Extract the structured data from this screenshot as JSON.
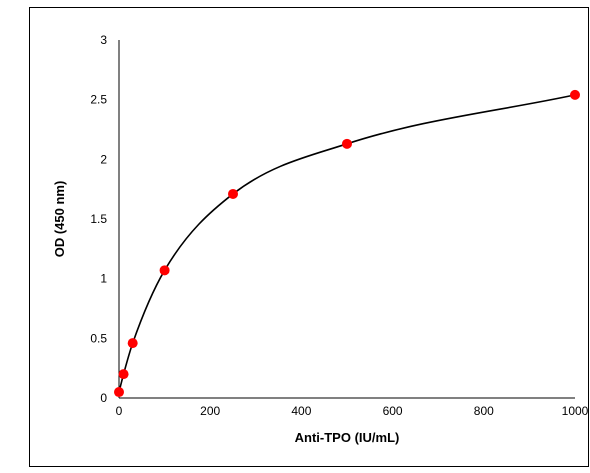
{
  "chart_data": {
    "type": "scatter",
    "title": "",
    "xlabel": "Anti-TPO (IU/mL)",
    "ylabel": "OD (450 nm)",
    "xlim": [
      0,
      1000
    ],
    "ylim": [
      0,
      3
    ],
    "x_ticks": [
      "0",
      "200",
      "400",
      "600",
      "800",
      "1000"
    ],
    "y_ticks": [
      "0",
      "0.5",
      "1",
      "1.5",
      "2",
      "2.5",
      "3"
    ],
    "grid": false,
    "legend": "none",
    "point_color": "#ff0000",
    "curve_color": "#000000",
    "series": [
      {
        "points": [
          {
            "x": 0,
            "y": 0.05
          },
          {
            "x": 10,
            "y": 0.2
          },
          {
            "x": 30,
            "y": 0.46
          },
          {
            "x": 100,
            "y": 1.07
          },
          {
            "x": 250,
            "y": 1.71
          },
          {
            "x": 500,
            "y": 2.13
          },
          {
            "x": 1000,
            "y": 2.54
          }
        ],
        "fit_curve": true
      }
    ]
  }
}
